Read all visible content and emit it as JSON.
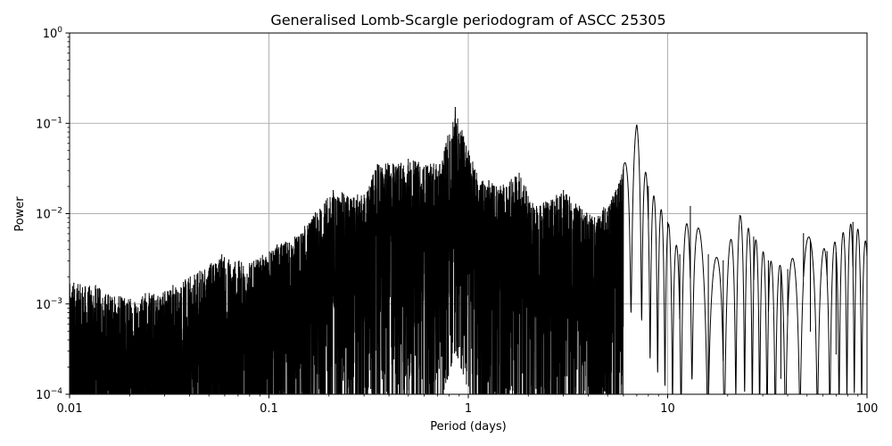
{
  "chart_data": {
    "type": "line",
    "title": "Generalised Lomb-Scargle periodogram of ASCC 25305",
    "xlabel": "Period (days)",
    "ylabel": "Power",
    "xscale": "log",
    "yscale": "log",
    "xlim": [
      0.01,
      100
    ],
    "ylim": [
      0.0001,
      1
    ],
    "grid": true,
    "line_color": "#000000",
    "grid_color": "#b0b0b0",
    "x_ticks": [
      {
        "value": 0.01,
        "label": "0.01"
      },
      {
        "value": 0.1,
        "label": "0.1"
      },
      {
        "value": 1,
        "label": "1"
      },
      {
        "value": 10,
        "label": "10"
      },
      {
        "value": 100,
        "label": "100"
      }
    ],
    "y_ticks": [
      {
        "value": 0.0001,
        "base": "10",
        "exp": "−4"
      },
      {
        "value": 0.001,
        "base": "10",
        "exp": "−3"
      },
      {
        "value": 0.01,
        "base": "10",
        "exp": "−2"
      },
      {
        "value": 0.1,
        "base": "10",
        "exp": "−1"
      },
      {
        "value": 1,
        "base": "10",
        "exp": "0"
      }
    ],
    "series": [
      {
        "peaks": [
          {
            "x": 0.0105,
            "y": 0.0017
          },
          {
            "x": 0.0135,
            "y": 0.0016
          },
          {
            "x": 0.018,
            "y": 0.0012
          },
          {
            "x": 0.024,
            "y": 0.0013
          },
          {
            "x": 0.033,
            "y": 0.0016
          },
          {
            "x": 0.045,
            "y": 0.0023
          },
          {
            "x": 0.058,
            "y": 0.0035
          },
          {
            "x": 0.08,
            "y": 0.0028
          },
          {
            "x": 0.11,
            "y": 0.0045
          },
          {
            "x": 0.135,
            "y": 0.0055
          },
          {
            "x": 0.21,
            "y": 0.018
          },
          {
            "x": 0.3,
            "y": 0.016
          },
          {
            "x": 0.35,
            "y": 0.035
          },
          {
            "x": 0.5,
            "y": 0.04
          },
          {
            "x": 0.72,
            "y": 0.035
          },
          {
            "x": 0.86,
            "y": 0.15
          },
          {
            "x": 1.1,
            "y": 0.028
          },
          {
            "x": 1.45,
            "y": 0.02
          },
          {
            "x": 1.8,
            "y": 0.028
          },
          {
            "x": 2.2,
            "y": 0.012
          },
          {
            "x": 3.0,
            "y": 0.018
          },
          {
            "x": 4.3,
            "y": 0.009
          },
          {
            "x": 5.5,
            "y": 0.018
          },
          {
            "x": 7.0,
            "y": 0.095
          },
          {
            "x": 8.0,
            "y": 0.02
          },
          {
            "x": 10.0,
            "y": 0.008
          },
          {
            "x": 11.5,
            "y": 0.0035
          },
          {
            "x": 13.0,
            "y": 0.012
          },
          {
            "x": 16.0,
            "y": 0.0035
          },
          {
            "x": 19.0,
            "y": 0.003
          },
          {
            "x": 23.0,
            "y": 0.0095
          },
          {
            "x": 27.0,
            "y": 0.0055
          },
          {
            "x": 32.0,
            "y": 0.003
          },
          {
            "x": 40.0,
            "y": 0.0024
          },
          {
            "x": 48.0,
            "y": 0.006
          },
          {
            "x": 63.0,
            "y": 0.0038
          },
          {
            "x": 85.0,
            "y": 0.008
          },
          {
            "x": 100.0,
            "y": 0.0046
          }
        ],
        "troughs": [
          {
            "x": 34.0,
            "y": 0.0009
          },
          {
            "x": 37.0,
            "y": 0.00015
          },
          {
            "x": 52.0,
            "y": 0.0005
          },
          {
            "x": 70.0,
            "y": 0.00028
          }
        ]
      }
    ]
  }
}
